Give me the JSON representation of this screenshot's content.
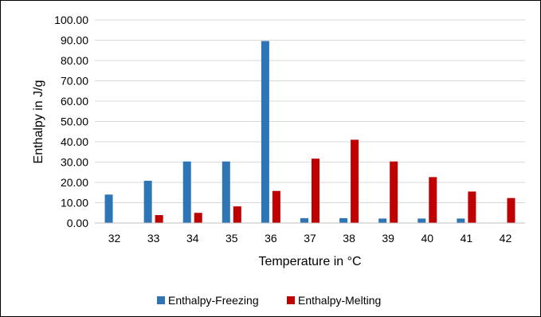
{
  "chart_data": {
    "type": "bar",
    "categories": [
      "32",
      "33",
      "34",
      "35",
      "36",
      "37",
      "38",
      "39",
      "40",
      "41",
      "42"
    ],
    "series": [
      {
        "name": "Enthalpy-Freezing",
        "color": "#2E75B6",
        "values": [
          14.0,
          20.8,
          30.3,
          30.3,
          89.6,
          2.4,
          2.4,
          2.2,
          2.2,
          2.2,
          null
        ]
      },
      {
        "name": "Enthalpy-Melting",
        "color": "#C00000",
        "values": [
          null,
          3.9,
          5.0,
          8.2,
          15.8,
          31.7,
          41.0,
          30.3,
          22.6,
          15.5,
          12.3
        ]
      }
    ],
    "xlabel": "Temperature in °C",
    "ylabel": "Enthalpy in J/g",
    "ylim": [
      0,
      100
    ],
    "yticks": [
      "0.00",
      "10.00",
      "20.00",
      "30.00",
      "40.00",
      "50.00",
      "60.00",
      "70.00",
      "80.00",
      "90.00",
      "100.00"
    ],
    "grid": true,
    "legend_position": "bottom"
  }
}
